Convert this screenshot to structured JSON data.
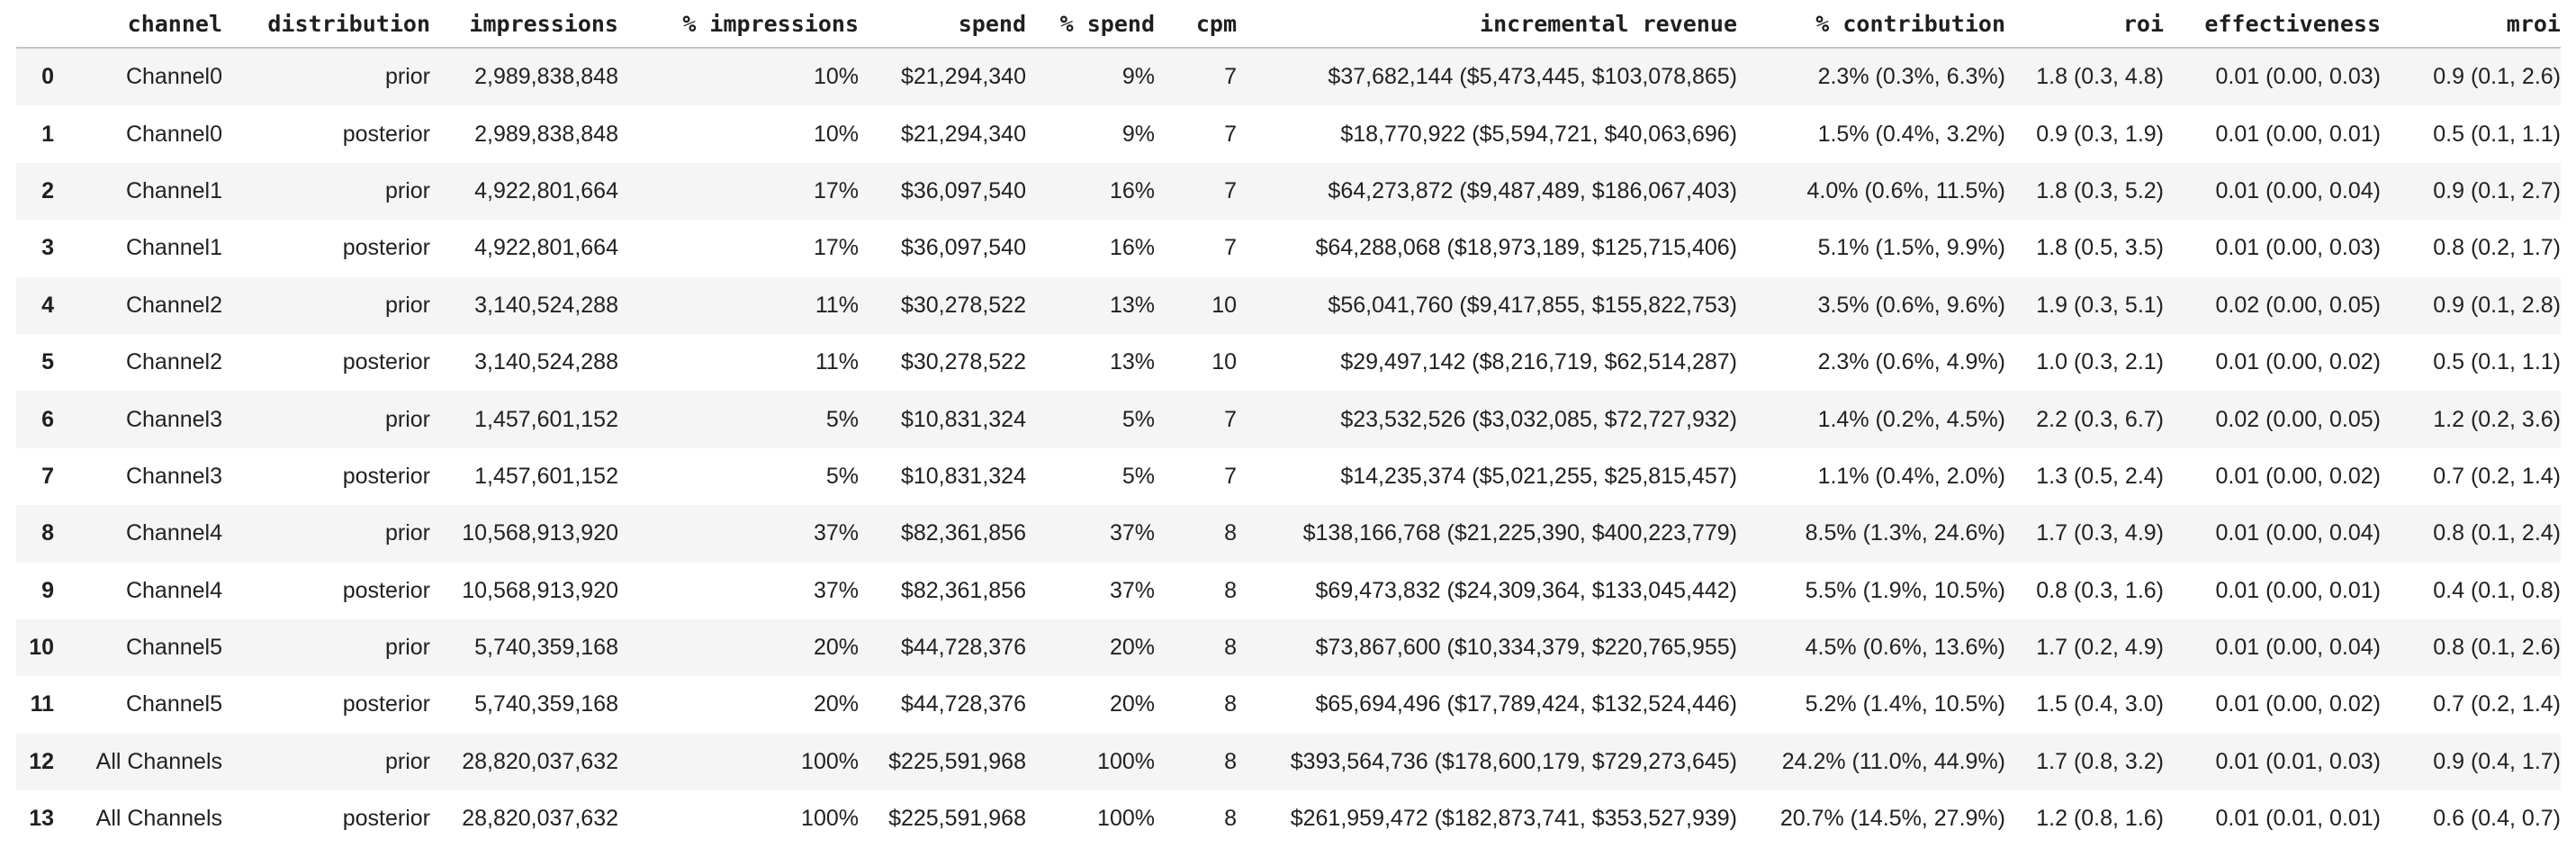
{
  "colors": {
    "background": "#ffffff",
    "row_stripe": "#f5f5f5",
    "header_border": "#c3c3c3",
    "header_text": "#1f1f1f",
    "body_text": "#202124"
  },
  "chart_data": {
    "type": "table",
    "columns": [
      "",
      "channel",
      "distribution",
      "impressions",
      "% impressions",
      "spend",
      "% spend",
      "cpm",
      "incremental revenue",
      "% contribution",
      "roi",
      "effectiveness",
      "mroi"
    ],
    "rows": [
      [
        "0",
        "Channel0",
        "prior",
        "2,989,838,848",
        "10%",
        "$21,294,340",
        "9%",
        "7",
        "$37,682,144 ($5,473,445, $103,078,865)",
        "2.3% (0.3%, 6.3%)",
        "1.8 (0.3, 4.8)",
        "0.01 (0.00, 0.03)",
        "0.9 (0.1, 2.6)"
      ],
      [
        "1",
        "Channel0",
        "posterior",
        "2,989,838,848",
        "10%",
        "$21,294,340",
        "9%",
        "7",
        "$18,770,922 ($5,594,721, $40,063,696)",
        "1.5% (0.4%, 3.2%)",
        "0.9 (0.3, 1.9)",
        "0.01 (0.00, 0.01)",
        "0.5 (0.1, 1.1)"
      ],
      [
        "2",
        "Channel1",
        "prior",
        "4,922,801,664",
        "17%",
        "$36,097,540",
        "16%",
        "7",
        "$64,273,872 ($9,487,489, $186,067,403)",
        "4.0% (0.6%, 11.5%)",
        "1.8 (0.3, 5.2)",
        "0.01 (0.00, 0.04)",
        "0.9 (0.1, 2.7)"
      ],
      [
        "3",
        "Channel1",
        "posterior",
        "4,922,801,664",
        "17%",
        "$36,097,540",
        "16%",
        "7",
        "$64,288,068 ($18,973,189, $125,715,406)",
        "5.1% (1.5%, 9.9%)",
        "1.8 (0.5, 3.5)",
        "0.01 (0.00, 0.03)",
        "0.8 (0.2, 1.7)"
      ],
      [
        "4",
        "Channel2",
        "prior",
        "3,140,524,288",
        "11%",
        "$30,278,522",
        "13%",
        "10",
        "$56,041,760 ($9,417,855, $155,822,753)",
        "3.5% (0.6%, 9.6%)",
        "1.9 (0.3, 5.1)",
        "0.02 (0.00, 0.05)",
        "0.9 (0.1, 2.8)"
      ],
      [
        "5",
        "Channel2",
        "posterior",
        "3,140,524,288",
        "11%",
        "$30,278,522",
        "13%",
        "10",
        "$29,497,142 ($8,216,719, $62,514,287)",
        "2.3% (0.6%, 4.9%)",
        "1.0 (0.3, 2.1)",
        "0.01 (0.00, 0.02)",
        "0.5 (0.1, 1.1)"
      ],
      [
        "6",
        "Channel3",
        "prior",
        "1,457,601,152",
        "5%",
        "$10,831,324",
        "5%",
        "7",
        "$23,532,526 ($3,032,085, $72,727,932)",
        "1.4% (0.2%, 4.5%)",
        "2.2 (0.3, 6.7)",
        "0.02 (0.00, 0.05)",
        "1.2 (0.2, 3.6)"
      ],
      [
        "7",
        "Channel3",
        "posterior",
        "1,457,601,152",
        "5%",
        "$10,831,324",
        "5%",
        "7",
        "$14,235,374 ($5,021,255, $25,815,457)",
        "1.1% (0.4%, 2.0%)",
        "1.3 (0.5, 2.4)",
        "0.01 (0.00, 0.02)",
        "0.7 (0.2, 1.4)"
      ],
      [
        "8",
        "Channel4",
        "prior",
        "10,568,913,920",
        "37%",
        "$82,361,856",
        "37%",
        "8",
        "$138,166,768 ($21,225,390, $400,223,779)",
        "8.5% (1.3%, 24.6%)",
        "1.7 (0.3, 4.9)",
        "0.01 (0.00, 0.04)",
        "0.8 (0.1, 2.4)"
      ],
      [
        "9",
        "Channel4",
        "posterior",
        "10,568,913,920",
        "37%",
        "$82,361,856",
        "37%",
        "8",
        "$69,473,832 ($24,309,364, $133,045,442)",
        "5.5% (1.9%, 10.5%)",
        "0.8 (0.3, 1.6)",
        "0.01 (0.00, 0.01)",
        "0.4 (0.1, 0.8)"
      ],
      [
        "10",
        "Channel5",
        "prior",
        "5,740,359,168",
        "20%",
        "$44,728,376",
        "20%",
        "8",
        "$73,867,600 ($10,334,379, $220,765,955)",
        "4.5% (0.6%, 13.6%)",
        "1.7 (0.2, 4.9)",
        "0.01 (0.00, 0.04)",
        "0.8 (0.1, 2.6)"
      ],
      [
        "11",
        "Channel5",
        "posterior",
        "5,740,359,168",
        "20%",
        "$44,728,376",
        "20%",
        "8",
        "$65,694,496 ($17,789,424, $132,524,446)",
        "5.2% (1.4%, 10.5%)",
        "1.5 (0.4, 3.0)",
        "0.01 (0.00, 0.02)",
        "0.7 (0.2, 1.4)"
      ],
      [
        "12",
        "All Channels",
        "prior",
        "28,820,037,632",
        "100%",
        "$225,591,968",
        "100%",
        "8",
        "$393,564,736 ($178,600,179, $729,273,645)",
        "24.2% (11.0%, 44.9%)",
        "1.7 (0.8, 3.2)",
        "0.01 (0.01, 0.03)",
        "0.9 (0.4, 1.7)"
      ],
      [
        "13",
        "All Channels",
        "posterior",
        "28,820,037,632",
        "100%",
        "$225,591,968",
        "100%",
        "8",
        "$261,959,472 ($182,873,741, $353,527,939)",
        "20.7% (14.5%, 27.9%)",
        "1.2 (0.8, 1.6)",
        "0.01 (0.01, 0.01)",
        "0.6 (0.4, 0.7)"
      ]
    ]
  }
}
